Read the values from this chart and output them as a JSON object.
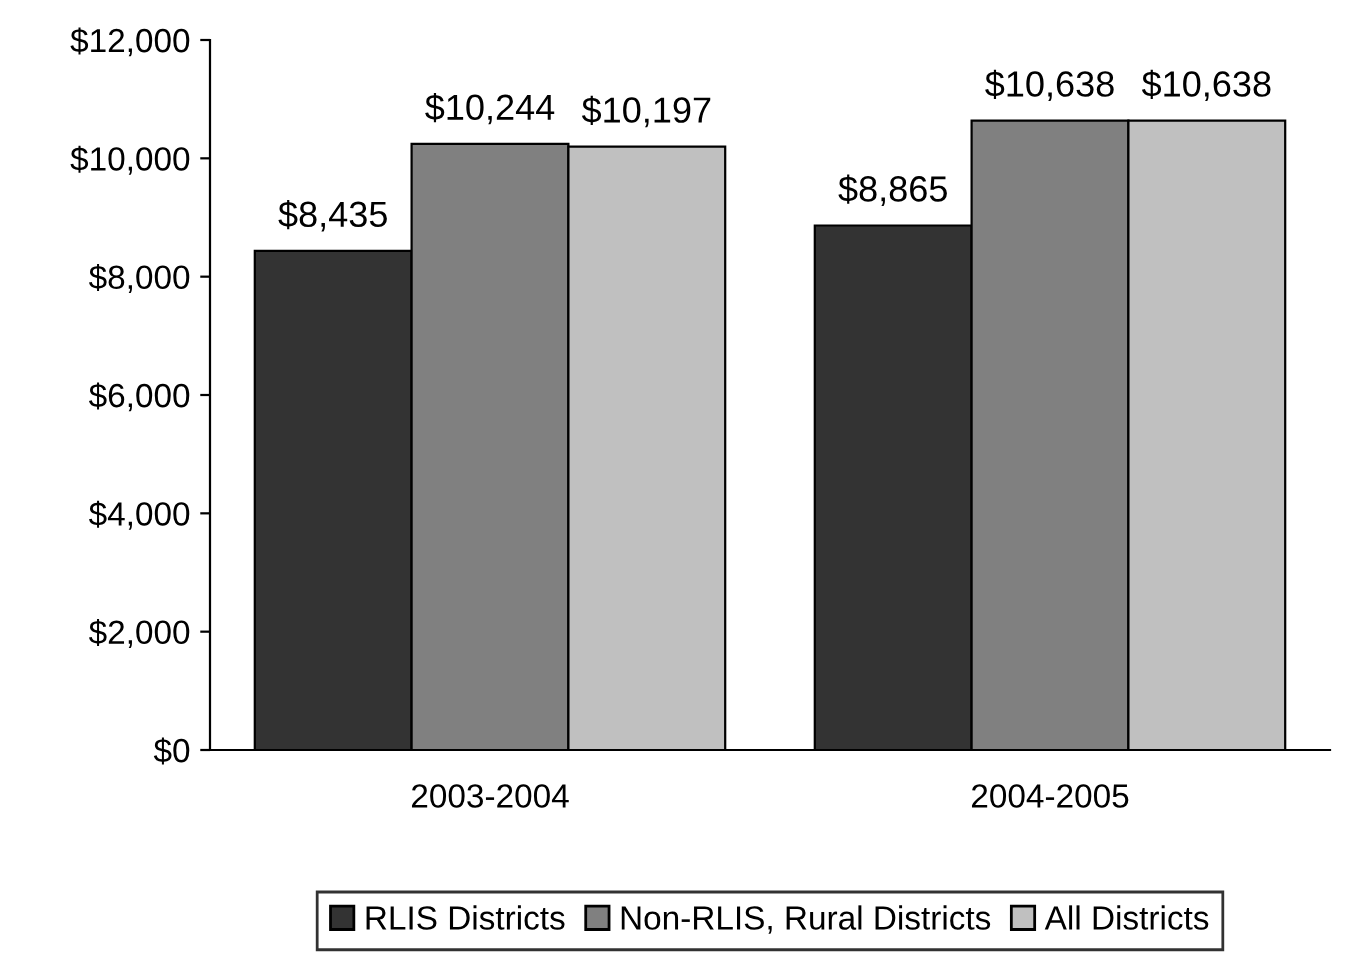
{
  "chart_data": {
    "type": "bar",
    "categories": [
      "2003-2004",
      "2004-2005"
    ],
    "series": [
      {
        "name": "RLIS Districts",
        "color": "#333333",
        "values": [
          8435,
          8865
        ],
        "value_labels": [
          "$8,435",
          "$8,865"
        ]
      },
      {
        "name": "Non-RLIS, Rural Districts",
        "color": "#808080",
        "values": [
          10244,
          10638
        ],
        "value_labels": [
          "$10,244",
          "$10,638"
        ]
      },
      {
        "name": "All Districts",
        "color": "#c0c0c0",
        "values": [
          10197,
          10638
        ],
        "value_labels": [
          "$10,197",
          "$10,638"
        ]
      }
    ],
    "ylim": [
      0,
      12000
    ],
    "yticks": [
      {
        "value": 0,
        "label": "$0"
      },
      {
        "value": 2000,
        "label": "$2,000"
      },
      {
        "value": 4000,
        "label": "$4,000"
      },
      {
        "value": 6000,
        "label": "$6,000"
      },
      {
        "value": 8000,
        "label": "$8,000"
      },
      {
        "value": 10000,
        "label": "$10,000"
      },
      {
        "value": 12000,
        "label": "$12,000"
      }
    ],
    "grid": false,
    "legend": "bottom"
  }
}
